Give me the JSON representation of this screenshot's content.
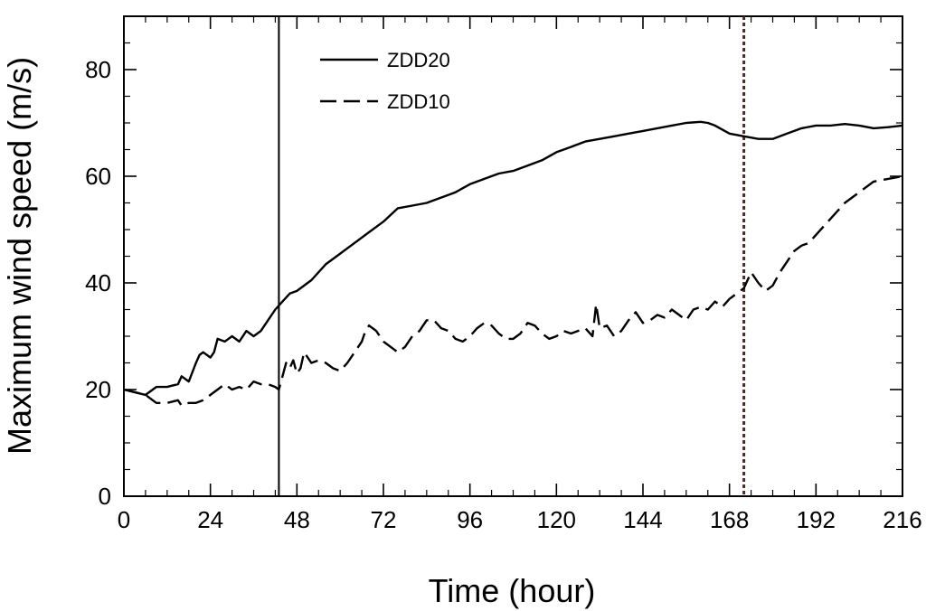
{
  "chart_data": {
    "type": "line",
    "title": "",
    "xlabel": "Time (hour)",
    "ylabel": "Maximum wind speed (m/s)",
    "xlim": [
      0,
      216
    ],
    "ylim": [
      0,
      90
    ],
    "xticks": [
      0,
      24,
      48,
      72,
      96,
      120,
      144,
      168,
      192,
      216
    ],
    "yticks": [
      0,
      20,
      40,
      60,
      80
    ],
    "grid": false,
    "legend_position": "top-center",
    "series": [
      {
        "name": "ZDD20",
        "line_style": "solid",
        "color": "#000000",
        "x": [
          0,
          3,
          6,
          9,
          12,
          15,
          16,
          18,
          20,
          21,
          22,
          24,
          25,
          26,
          28,
          30,
          32,
          34,
          36,
          38,
          40,
          42,
          44,
          46,
          48,
          52,
          56,
          60,
          64,
          68,
          72,
          76,
          80,
          84,
          88,
          92,
          96,
          100,
          104,
          108,
          112,
          116,
          120,
          124,
          128,
          132,
          136,
          140,
          144,
          148,
          152,
          156,
          160,
          162,
          164,
          168,
          172,
          176,
          180,
          184,
          188,
          192,
          196,
          200,
          204,
          208,
          212,
          216
        ],
        "y": [
          20,
          19.5,
          19,
          20.5,
          20.5,
          21,
          22.5,
          21.5,
          25,
          26.5,
          27,
          26,
          27,
          29.5,
          29,
          30,
          29,
          31,
          30,
          31,
          33,
          35,
          36.5,
          38,
          38.5,
          40.5,
          43.5,
          45.5,
          47.5,
          49.5,
          51.5,
          54,
          54.5,
          55,
          56,
          57,
          58.5,
          59.5,
          60.5,
          61,
          62,
          63,
          64.5,
          65.5,
          66.5,
          67,
          67.5,
          68,
          68.5,
          69,
          69.5,
          70,
          70.2,
          70,
          69.5,
          68,
          67.5,
          67,
          67,
          68,
          69,
          69.5,
          69.5,
          69.8,
          69.5,
          69,
          69.2,
          69.5
        ]
      },
      {
        "name": "ZDD10",
        "line_style": "dashed",
        "color": "#000000",
        "x": [
          0,
          3,
          6,
          9,
          12,
          15,
          16,
          18,
          20,
          22,
          24,
          26,
          28,
          30,
          32,
          34,
          36,
          38,
          40,
          42,
          43,
          44,
          45,
          46,
          47,
          48,
          49,
          50,
          52,
          54,
          56,
          58,
          60,
          62,
          64,
          66,
          67,
          68,
          70,
          72,
          74,
          76,
          78,
          80,
          82,
          84,
          86,
          88,
          90,
          92,
          94,
          96,
          98,
          100,
          102,
          104,
          106,
          108,
          110,
          112,
          114,
          116,
          118,
          120,
          122,
          124,
          126,
          128,
          130,
          131,
          132,
          134,
          136,
          138,
          140,
          142,
          144,
          146,
          148,
          150,
          152,
          154,
          156,
          158,
          160,
          162,
          164,
          166,
          168,
          170,
          172,
          174,
          176,
          178,
          180,
          182,
          184,
          186,
          188,
          190,
          192,
          196,
          200,
          204,
          208,
          212,
          216
        ],
        "y": [
          20,
          19.5,
          19,
          17.5,
          17.5,
          18,
          17,
          17.5,
          17.5,
          18,
          19,
          20,
          21,
          20,
          20.5,
          20,
          21.5,
          21,
          21,
          20.5,
          20,
          22.5,
          25,
          24,
          25.5,
          23,
          24,
          27,
          25,
          25.5,
          25,
          24,
          23.5,
          25,
          27,
          29,
          31,
          32,
          31,
          29,
          28,
          27,
          28,
          30,
          31,
          33,
          33,
          31.5,
          31,
          29.5,
          29,
          30,
          31.5,
          32.5,
          32,
          30.5,
          29.5,
          29.5,
          30.5,
          32.5,
          32,
          30.5,
          29.5,
          30,
          31,
          30.5,
          31,
          31.5,
          30,
          36,
          31.5,
          32,
          30,
          31,
          33,
          34.5,
          32.5,
          33,
          34,
          33.5,
          35,
          34,
          33,
          35,
          35.5,
          35,
          36.5,
          35.5,
          37,
          38,
          39,
          42,
          40,
          38.5,
          39.5,
          42,
          44,
          46,
          47,
          47.5,
          49,
          52,
          55,
          57,
          59,
          59.5,
          60
        ]
      }
    ],
    "vertical_markers": [
      {
        "x": 43,
        "line_style": "solid",
        "color": "#000000"
      },
      {
        "x": 172,
        "line_style": "dotted",
        "color": "#4a2a2a"
      }
    ]
  }
}
